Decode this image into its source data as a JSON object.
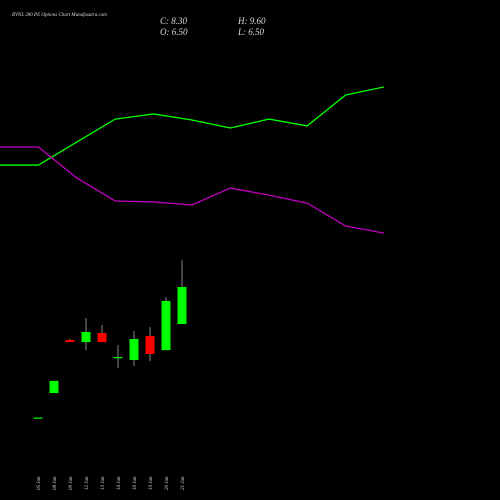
{
  "chart_data": [
    {
      "type": "candlestick",
      "title": "RVNL 280 PE Options Chart Munafasutra.com",
      "summary": [
        {
          "label": "C:",
          "value": 8.3,
          "value_label": "8.30"
        },
        {
          "label": "O:",
          "value": 6.5,
          "value_label": "6.50"
        },
        {
          "label": "H:",
          "value": 9.6,
          "value_label": "9.60"
        },
        {
          "label": "L:",
          "value": 6.5,
          "value_label": "6.50"
        }
      ],
      "categories": [
        "05 Jan",
        "08 Jan",
        "09 Jan",
        "12 Jan",
        "13 Jan",
        "14 Jan",
        "16 Jan",
        "19 Jan",
        "20 Jan",
        "21 Jan"
      ],
      "open": [
        1.95,
        3.14,
        5.72,
        5.62,
        6.06,
        4.89,
        4.75,
        5.92,
        5.23,
        6.5
      ],
      "high": [
        1.95,
        3.73,
        5.77,
        6.79,
        6.45,
        5.48,
        6.16,
        6.35,
        7.81,
        9.6
      ],
      "low": [
        1.95,
        3.14,
        5.62,
        5.23,
        5.62,
        4.36,
        4.46,
        4.7,
        5.23,
        6.5
      ],
      "close": [
        1.95,
        3.73,
        5.62,
        6.11,
        5.62,
        4.89,
        5.77,
        5.04,
        7.62,
        8.3
      ],
      "up_color": "#00ff00",
      "down_color": "#ff0000",
      "wick_color": "#aaaaaa",
      "ylim": [
        0.5,
        11
      ]
    },
    {
      "type": "line",
      "series": [
        {
          "color": "#00ff00",
          "values": [
            44.7,
            44.7,
            56.8,
            68.9,
            71.6,
            68.4,
            64.2,
            68.9,
            65.3,
            81.6,
            85.8
          ]
        },
        {
          "color": "#c000c0",
          "values": [
            54.2,
            54.2,
            37.9,
            25.8,
            25.3,
            23.7,
            32.6,
            28.9,
            24.7,
            12.6,
            8.9
          ]
        }
      ],
      "ylim": [
        0,
        100
      ]
    }
  ]
}
